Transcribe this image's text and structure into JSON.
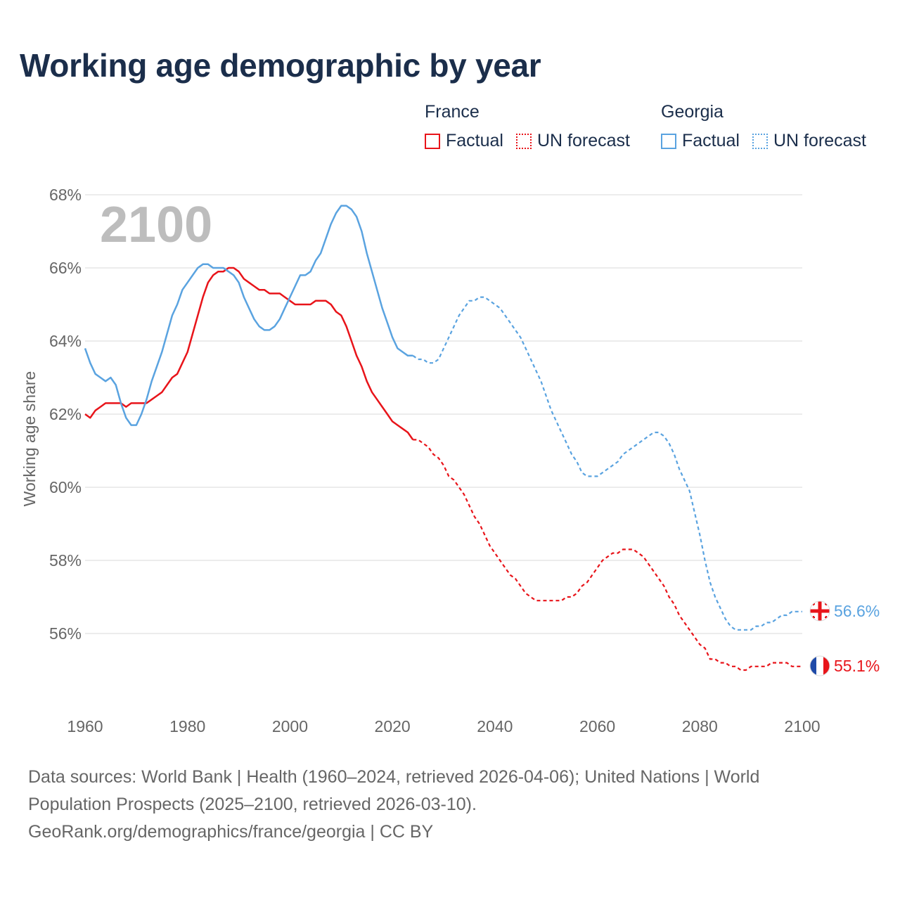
{
  "title": "Working age demographic by year",
  "legend": [
    {
      "group": "France",
      "factual_label": "Factual",
      "forecast_label": "UN forecast",
      "color": "#e8141a"
    },
    {
      "group": "Georgia",
      "factual_label": "Factual",
      "forecast_label": "UN forecast",
      "color": "#5aa3e0"
    }
  ],
  "footer": {
    "line1": "Data sources: World Bank | Health (1960–2024, retrieved 2026-04-06); United Nations | World",
    "line2": "Population Prospects (2025–2100, retrieved 2026-03-10).",
    "line3": "GeoRank.org/demographics/france/georgia | CC BY"
  },
  "chart_data": {
    "type": "line",
    "title": "Working age demographic by year",
    "ylabel": "Working age share",
    "xlabel": "",
    "year_overlay": "2100",
    "xlim": [
      1960,
      2100
    ],
    "ylim": [
      54.0,
      68.0
    ],
    "xticks": [
      1960,
      1980,
      2000,
      2020,
      2040,
      2060,
      2080,
      2100
    ],
    "yticks": [
      56,
      58,
      60,
      62,
      64,
      66,
      68
    ],
    "ytick_labels": [
      "56%",
      "58%",
      "60%",
      "62%",
      "64%",
      "66%",
      "68%"
    ],
    "xtick_labels": [
      "1960",
      "1980",
      "2000",
      "2020",
      "2040",
      "2060",
      "2080",
      "2100"
    ],
    "grid": true,
    "series": [
      {
        "name": "France",
        "color": "#e8141a",
        "end_label": "55.1%",
        "factual": [
          [
            1960,
            62.0
          ],
          [
            1961,
            61.9
          ],
          [
            1962,
            62.1
          ],
          [
            1963,
            62.2
          ],
          [
            1964,
            62.3
          ],
          [
            1965,
            62.3
          ],
          [
            1966,
            62.3
          ],
          [
            1967,
            62.3
          ],
          [
            1968,
            62.2
          ],
          [
            1969,
            62.3
          ],
          [
            1970,
            62.3
          ],
          [
            1971,
            62.3
          ],
          [
            1972,
            62.3
          ],
          [
            1973,
            62.4
          ],
          [
            1974,
            62.5
          ],
          [
            1975,
            62.6
          ],
          [
            1976,
            62.8
          ],
          [
            1977,
            63.0
          ],
          [
            1978,
            63.1
          ],
          [
            1979,
            63.4
          ],
          [
            1980,
            63.7
          ],
          [
            1981,
            64.2
          ],
          [
            1982,
            64.7
          ],
          [
            1983,
            65.2
          ],
          [
            1984,
            65.6
          ],
          [
            1985,
            65.8
          ],
          [
            1986,
            65.9
          ],
          [
            1987,
            65.9
          ],
          [
            1988,
            66.0
          ],
          [
            1989,
            66.0
          ],
          [
            1990,
            65.9
          ],
          [
            1991,
            65.7
          ],
          [
            1992,
            65.6
          ],
          [
            1993,
            65.5
          ],
          [
            1994,
            65.4
          ],
          [
            1995,
            65.4
          ],
          [
            1996,
            65.3
          ],
          [
            1997,
            65.3
          ],
          [
            1998,
            65.3
          ],
          [
            1999,
            65.2
          ],
          [
            2000,
            65.1
          ],
          [
            2001,
            65.0
          ],
          [
            2002,
            65.0
          ],
          [
            2003,
            65.0
          ],
          [
            2004,
            65.0
          ],
          [
            2005,
            65.1
          ],
          [
            2006,
            65.1
          ],
          [
            2007,
            65.1
          ],
          [
            2008,
            65.0
          ],
          [
            2009,
            64.8
          ],
          [
            2010,
            64.7
          ],
          [
            2011,
            64.4
          ],
          [
            2012,
            64.0
          ],
          [
            2013,
            63.6
          ],
          [
            2014,
            63.3
          ],
          [
            2015,
            62.9
          ],
          [
            2016,
            62.6
          ],
          [
            2017,
            62.4
          ],
          [
            2018,
            62.2
          ],
          [
            2019,
            62.0
          ],
          [
            2020,
            61.8
          ],
          [
            2021,
            61.7
          ],
          [
            2022,
            61.6
          ],
          [
            2023,
            61.5
          ],
          [
            2024,
            61.3
          ]
        ],
        "forecast": [
          [
            2024,
            61.3
          ],
          [
            2025,
            61.3
          ],
          [
            2026,
            61.2
          ],
          [
            2027,
            61.1
          ],
          [
            2028,
            60.9
          ],
          [
            2029,
            60.8
          ],
          [
            2030,
            60.6
          ],
          [
            2031,
            60.3
          ],
          [
            2032,
            60.2
          ],
          [
            2033,
            60.0
          ],
          [
            2034,
            59.8
          ],
          [
            2035,
            59.5
          ],
          [
            2036,
            59.2
          ],
          [
            2037,
            59.0
          ],
          [
            2038,
            58.7
          ],
          [
            2039,
            58.4
          ],
          [
            2040,
            58.2
          ],
          [
            2041,
            58.0
          ],
          [
            2042,
            57.8
          ],
          [
            2043,
            57.6
          ],
          [
            2044,
            57.5
          ],
          [
            2045,
            57.3
          ],
          [
            2046,
            57.1
          ],
          [
            2047,
            57.0
          ],
          [
            2048,
            56.9
          ],
          [
            2049,
            56.9
          ],
          [
            2050,
            56.9
          ],
          [
            2051,
            56.9
          ],
          [
            2052,
            56.9
          ],
          [
            2053,
            56.9
          ],
          [
            2054,
            57.0
          ],
          [
            2055,
            57.0
          ],
          [
            2056,
            57.1
          ],
          [
            2057,
            57.3
          ],
          [
            2058,
            57.4
          ],
          [
            2059,
            57.6
          ],
          [
            2060,
            57.8
          ],
          [
            2061,
            58.0
          ],
          [
            2062,
            58.1
          ],
          [
            2063,
            58.2
          ],
          [
            2064,
            58.2
          ],
          [
            2065,
            58.3
          ],
          [
            2066,
            58.3
          ],
          [
            2067,
            58.3
          ],
          [
            2068,
            58.2
          ],
          [
            2069,
            58.1
          ],
          [
            2070,
            57.9
          ],
          [
            2071,
            57.7
          ],
          [
            2072,
            57.5
          ],
          [
            2073,
            57.3
          ],
          [
            2074,
            57.0
          ],
          [
            2075,
            56.8
          ],
          [
            2076,
            56.5
          ],
          [
            2077,
            56.3
          ],
          [
            2078,
            56.1
          ],
          [
            2079,
            55.9
          ],
          [
            2080,
            55.7
          ],
          [
            2081,
            55.6
          ],
          [
            2082,
            55.3
          ],
          [
            2083,
            55.3
          ],
          [
            2084,
            55.2
          ],
          [
            2085,
            55.2
          ],
          [
            2086,
            55.1
          ],
          [
            2087,
            55.1
          ],
          [
            2088,
            55.0
          ],
          [
            2089,
            55.0
          ],
          [
            2090,
            55.1
          ],
          [
            2091,
            55.1
          ],
          [
            2092,
            55.1
          ],
          [
            2093,
            55.1
          ],
          [
            2094,
            55.2
          ],
          [
            2095,
            55.2
          ],
          [
            2096,
            55.2
          ],
          [
            2097,
            55.2
          ],
          [
            2098,
            55.1
          ],
          [
            2099,
            55.1
          ],
          [
            2100,
            55.1
          ]
        ]
      },
      {
        "name": "Georgia",
        "color": "#5aa3e0",
        "end_label": "56.6%",
        "factual": [
          [
            1960,
            63.8
          ],
          [
            1961,
            63.4
          ],
          [
            1962,
            63.1
          ],
          [
            1963,
            63.0
          ],
          [
            1964,
            62.9
          ],
          [
            1965,
            63.0
          ],
          [
            1966,
            62.8
          ],
          [
            1967,
            62.3
          ],
          [
            1968,
            61.9
          ],
          [
            1969,
            61.7
          ],
          [
            1970,
            61.7
          ],
          [
            1971,
            62.0
          ],
          [
            1972,
            62.4
          ],
          [
            1973,
            62.9
          ],
          [
            1974,
            63.3
          ],
          [
            1975,
            63.7
          ],
          [
            1976,
            64.2
          ],
          [
            1977,
            64.7
          ],
          [
            1978,
            65.0
          ],
          [
            1979,
            65.4
          ],
          [
            1980,
            65.6
          ],
          [
            1981,
            65.8
          ],
          [
            1982,
            66.0
          ],
          [
            1983,
            66.1
          ],
          [
            1984,
            66.1
          ],
          [
            1985,
            66.0
          ],
          [
            1986,
            66.0
          ],
          [
            1987,
            66.0
          ],
          [
            1988,
            65.9
          ],
          [
            1989,
            65.8
          ],
          [
            1990,
            65.6
          ],
          [
            1991,
            65.2
          ],
          [
            1992,
            64.9
          ],
          [
            1993,
            64.6
          ],
          [
            1994,
            64.4
          ],
          [
            1995,
            64.3
          ],
          [
            1996,
            64.3
          ],
          [
            1997,
            64.4
          ],
          [
            1998,
            64.6
          ],
          [
            1999,
            64.9
          ],
          [
            2000,
            65.2
          ],
          [
            2001,
            65.5
          ],
          [
            2002,
            65.8
          ],
          [
            2003,
            65.8
          ],
          [
            2004,
            65.9
          ],
          [
            2005,
            66.2
          ],
          [
            2006,
            66.4
          ],
          [
            2007,
            66.8
          ],
          [
            2008,
            67.2
          ],
          [
            2009,
            67.5
          ],
          [
            2010,
            67.7
          ],
          [
            2011,
            67.7
          ],
          [
            2012,
            67.6
          ],
          [
            2013,
            67.4
          ],
          [
            2014,
            67.0
          ],
          [
            2015,
            66.4
          ],
          [
            2016,
            65.9
          ],
          [
            2017,
            65.4
          ],
          [
            2018,
            64.9
          ],
          [
            2019,
            64.5
          ],
          [
            2020,
            64.1
          ],
          [
            2021,
            63.8
          ],
          [
            2022,
            63.7
          ],
          [
            2023,
            63.6
          ],
          [
            2024,
            63.6
          ]
        ],
        "forecast": [
          [
            2024,
            63.6
          ],
          [
            2025,
            63.5
          ],
          [
            2026,
            63.5
          ],
          [
            2027,
            63.4
          ],
          [
            2028,
            63.4
          ],
          [
            2029,
            63.5
          ],
          [
            2030,
            63.8
          ],
          [
            2031,
            64.1
          ],
          [
            2032,
            64.4
          ],
          [
            2033,
            64.7
          ],
          [
            2034,
            64.9
          ],
          [
            2035,
            65.1
          ],
          [
            2036,
            65.1
          ],
          [
            2037,
            65.2
          ],
          [
            2038,
            65.2
          ],
          [
            2039,
            65.1
          ],
          [
            2040,
            65.0
          ],
          [
            2041,
            64.9
          ],
          [
            2042,
            64.7
          ],
          [
            2043,
            64.5
          ],
          [
            2044,
            64.3
          ],
          [
            2045,
            64.1
          ],
          [
            2046,
            63.8
          ],
          [
            2047,
            63.5
          ],
          [
            2048,
            63.2
          ],
          [
            2049,
            62.9
          ],
          [
            2050,
            62.5
          ],
          [
            2051,
            62.1
          ],
          [
            2052,
            61.8
          ],
          [
            2053,
            61.5
          ],
          [
            2054,
            61.2
          ],
          [
            2055,
            60.9
          ],
          [
            2056,
            60.7
          ],
          [
            2057,
            60.4
          ],
          [
            2058,
            60.3
          ],
          [
            2059,
            60.3
          ],
          [
            2060,
            60.3
          ],
          [
            2061,
            60.4
          ],
          [
            2062,
            60.5
          ],
          [
            2063,
            60.6
          ],
          [
            2064,
            60.7
          ],
          [
            2065,
            60.9
          ],
          [
            2066,
            61.0
          ],
          [
            2067,
            61.1
          ],
          [
            2068,
            61.2
          ],
          [
            2069,
            61.3
          ],
          [
            2070,
            61.4
          ],
          [
            2071,
            61.5
          ],
          [
            2072,
            61.5
          ],
          [
            2073,
            61.4
          ],
          [
            2074,
            61.2
          ],
          [
            2075,
            60.9
          ],
          [
            2076,
            60.5
          ],
          [
            2077,
            60.2
          ],
          [
            2078,
            59.9
          ],
          [
            2079,
            59.3
          ],
          [
            2080,
            58.7
          ],
          [
            2081,
            58.0
          ],
          [
            2082,
            57.4
          ],
          [
            2083,
            57.0
          ],
          [
            2084,
            56.7
          ],
          [
            2085,
            56.4
          ],
          [
            2086,
            56.2
          ],
          [
            2087,
            56.1
          ],
          [
            2088,
            56.1
          ],
          [
            2089,
            56.1
          ],
          [
            2090,
            56.1
          ],
          [
            2091,
            56.2
          ],
          [
            2092,
            56.2
          ],
          [
            2093,
            56.3
          ],
          [
            2094,
            56.3
          ],
          [
            2095,
            56.4
          ],
          [
            2096,
            56.5
          ],
          [
            2097,
            56.5
          ],
          [
            2098,
            56.6
          ],
          [
            2099,
            56.6
          ],
          [
            2100,
            56.6
          ]
        ]
      }
    ]
  }
}
